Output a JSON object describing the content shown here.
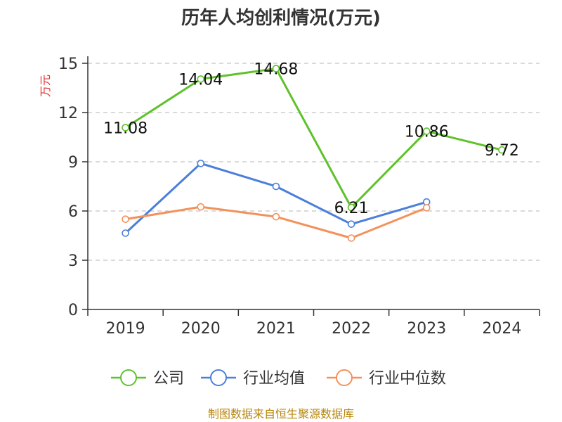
{
  "chart_data": {
    "type": "line",
    "title": "历年人均创利情况(万元)",
    "ylabel": "万元",
    "categories": [
      "2019",
      "2020",
      "2021",
      "2022",
      "2023",
      "2024"
    ],
    "ylim": [
      0,
      15
    ],
    "yticks": [
      0,
      3,
      6,
      9,
      12,
      15
    ],
    "grid": true,
    "legend_position": "bottom",
    "series": [
      {
        "name": "公司",
        "color": "#5ec229",
        "values": [
          11.08,
          14.04,
          14.68,
          6.21,
          10.86,
          9.72
        ],
        "labels": [
          "11.08",
          "14.04",
          "14.68",
          "6.21",
          "10.86",
          "9.72"
        ]
      },
      {
        "name": "行业均值",
        "color": "#4a7fdb",
        "values": [
          4.65,
          8.9,
          7.5,
          5.2,
          6.55,
          null
        ]
      },
      {
        "name": "行业中位数",
        "color": "#f4915a",
        "values": [
          5.5,
          6.25,
          5.65,
          4.35,
          6.2,
          null
        ]
      }
    ]
  },
  "source": "制图数据来自恒生聚源数据库"
}
